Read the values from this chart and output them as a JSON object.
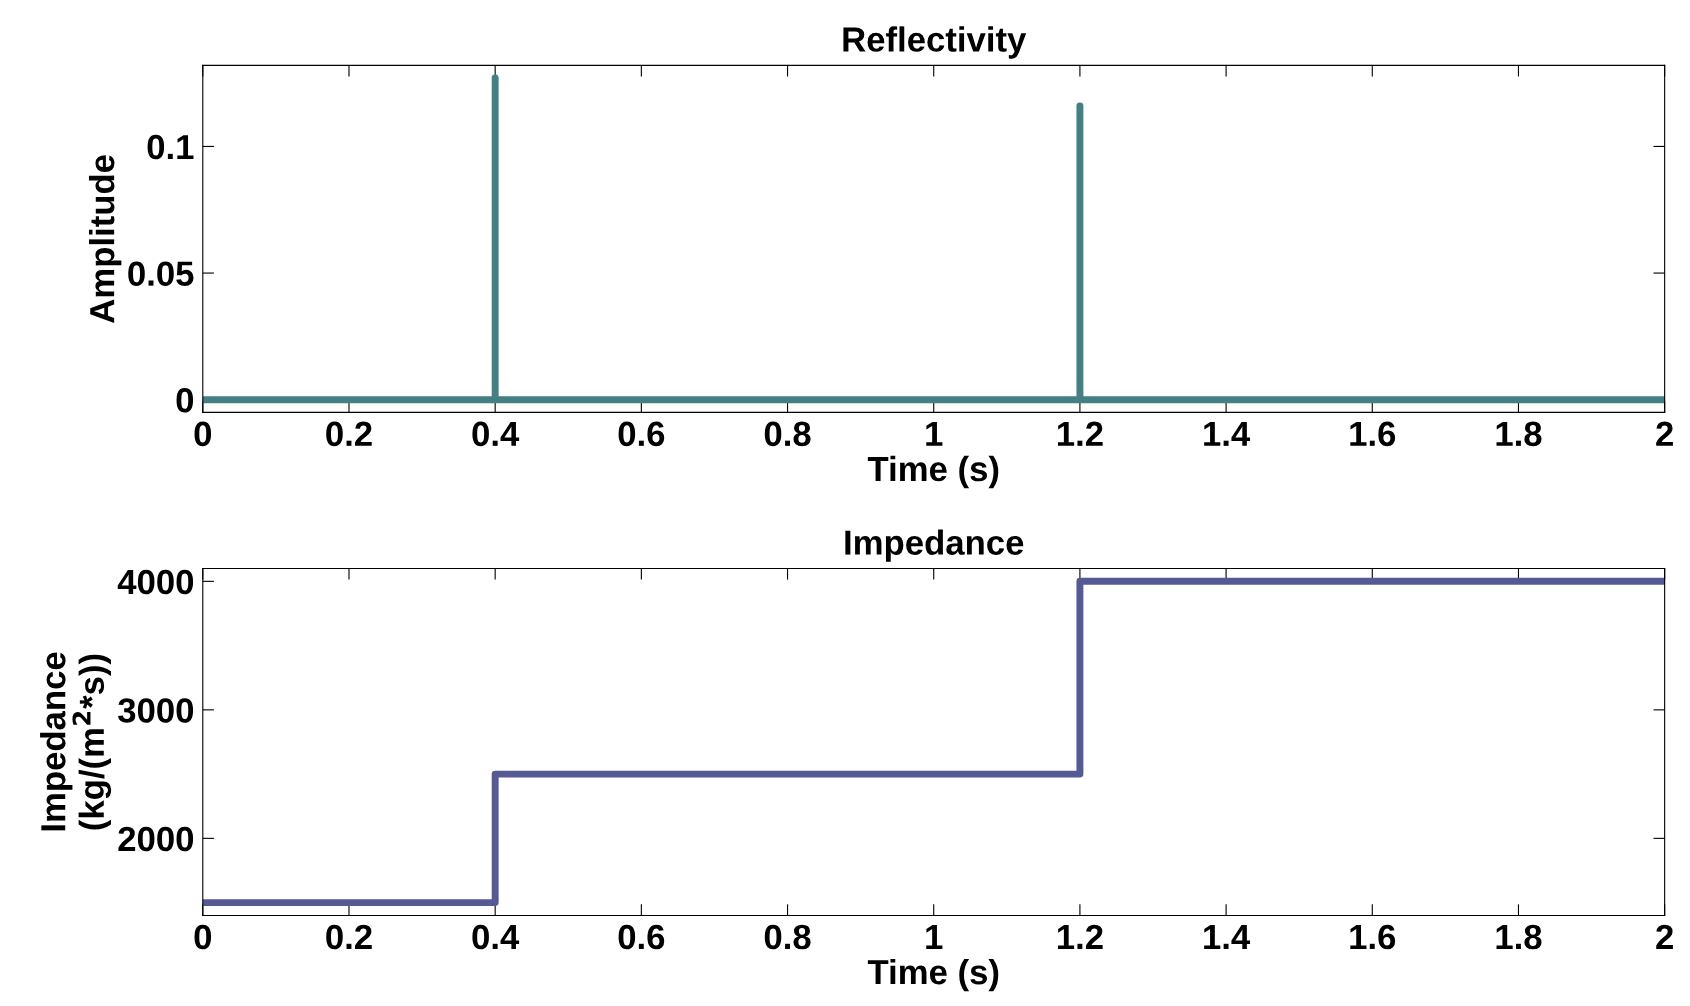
{
  "chart_data": [
    {
      "type": "line",
      "title": "Reflectivity",
      "xlabel": "Time (s)",
      "ylabel": "Amplitude",
      "series": [
        {
          "color": "#447f84",
          "x": [
            0,
            0.4,
            0.4,
            0.4,
            1.2,
            1.2,
            1.2,
            2
          ],
          "values": [
            0,
            0,
            0.127,
            0,
            0,
            0.116,
            0,
            0
          ]
        }
      ],
      "xlim": [
        0,
        2
      ],
      "xticks": [
        0,
        0.2,
        0.4,
        0.6,
        0.8,
        1,
        1.2,
        1.4,
        1.6,
        1.8,
        2
      ],
      "ylim": [
        -0.005,
        0.132
      ],
      "yticks": [
        0,
        0.05,
        0.1
      ],
      "grid": false
    },
    {
      "type": "line",
      "title": "Impedance",
      "xlabel": "Time (s)",
      "ylabel": "Impedance\n(kg/(m$^{2}$*s))",
      "series": [
        {
          "color": "#565a94",
          "x": [
            0,
            0.4,
            0.4,
            1.2,
            1.2,
            2
          ],
          "values": [
            1500,
            1500,
            2500,
            2500,
            4000,
            4000
          ]
        }
      ],
      "xlim": [
        0,
        2
      ],
      "xticks": [
        0,
        0.2,
        0.4,
        0.6,
        0.8,
        1,
        1.2,
        1.4,
        1.6,
        1.8,
        2
      ],
      "ylim": [
        1400,
        4100
      ],
      "yticks": [
        2000,
        3000,
        4000
      ],
      "grid": false
    }
  ]
}
